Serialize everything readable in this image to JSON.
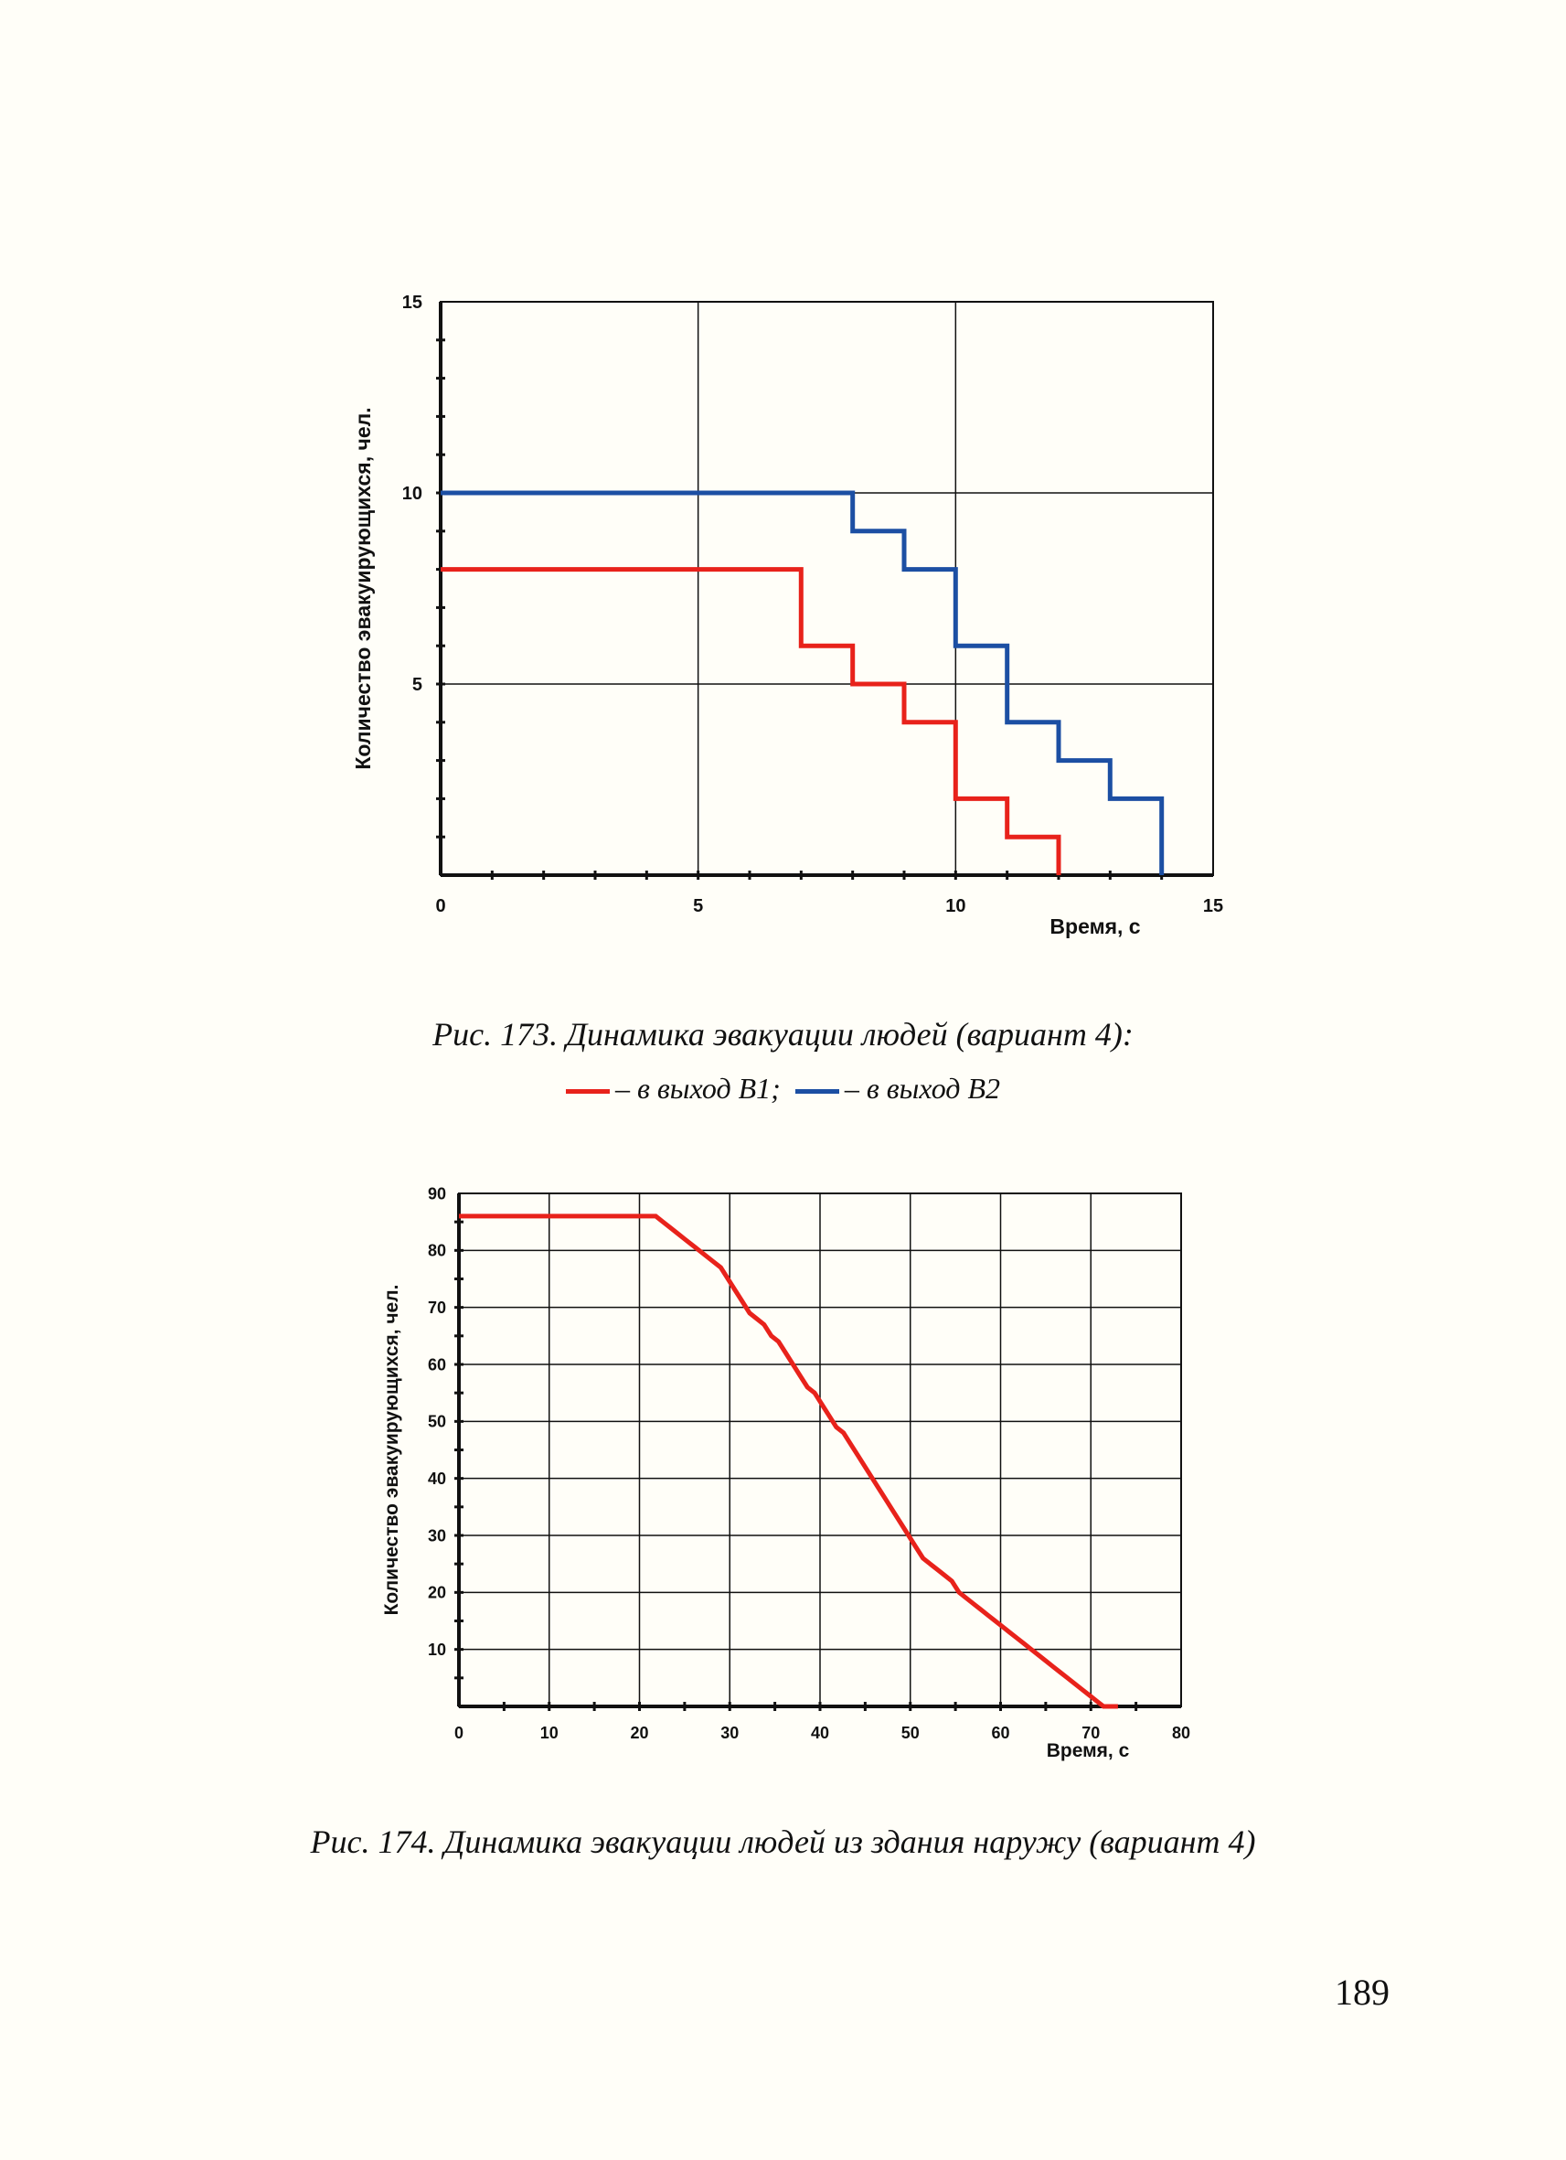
{
  "page_number": "189",
  "figure173": {
    "caption": "Рис. 173. Динамика эвакуации людей (вариант 4):",
    "legend": [
      {
        "label": "– в выход В1;",
        "color": "#e8221b"
      },
      {
        "label": "– в выход В2",
        "color": "#1c4fa3"
      }
    ]
  },
  "figure174": {
    "caption": "Рис. 174. Динамика эвакуации людей из здания наружу (вариант 4)"
  },
  "chart_data": [
    {
      "type": "line",
      "step": true,
      "title": "",
      "xlabel": "Время, с",
      "ylabel": "Количество эвакуирующихся, чел.",
      "xlim": [
        0,
        15
      ],
      "ylim": [
        0,
        15
      ],
      "xticks": [
        0,
        5,
        10,
        15
      ],
      "yticks": [
        5,
        10,
        15
      ],
      "grid": true,
      "series": [
        {
          "name": "в выход В1",
          "color": "#e8221b",
          "x": [
            0,
            7,
            7,
            8,
            8,
            9,
            9,
            10,
            10,
            11,
            11,
            12,
            12
          ],
          "y": [
            8,
            8,
            6,
            6,
            5,
            5,
            4,
            4,
            2,
            2,
            1,
            1,
            0
          ]
        },
        {
          "name": "в выход В2",
          "color": "#1c4fa3",
          "x": [
            0,
            8,
            8,
            9,
            9,
            10,
            10,
            11,
            11,
            12,
            12,
            13,
            13,
            14,
            14
          ],
          "y": [
            10,
            10,
            9,
            9,
            8,
            8,
            6,
            6,
            4,
            4,
            3,
            3,
            2,
            2,
            0
          ]
        }
      ]
    },
    {
      "type": "line",
      "step": true,
      "title": "",
      "xlabel": "Время, с",
      "ylabel": "Количество эвакуирующихся, чел.",
      "xlim": [
        0,
        80
      ],
      "ylim": [
        0,
        90
      ],
      "xticks": [
        0,
        10,
        20,
        30,
        40,
        50,
        60,
        70,
        80
      ],
      "yticks": [
        10,
        20,
        30,
        40,
        50,
        60,
        70,
        80,
        90
      ],
      "grid": true,
      "series": [
        {
          "color": "#e8221b",
          "x": [
            0,
            21.8,
            22.6,
            23.4,
            24.2,
            25.0,
            25.8,
            26.6,
            27.4,
            28.2,
            29.0,
            29.8,
            30.6,
            31.4,
            32.2,
            33.0,
            33.8,
            34.6,
            35.4,
            36.2,
            37.0,
            37.8,
            38.6,
            39.4,
            40.2,
            41.0,
            41.8,
            42.6,
            43.4,
            44.2,
            45.0,
            45.8,
            46.6,
            47.4,
            48.2,
            49.0,
            49.8,
            50.6,
            51.4,
            52.2,
            53.0,
            53.8,
            54.6,
            55.4,
            56.2,
            57.0,
            57.8,
            58.6,
            59.4,
            60.2,
            61.0,
            61.8,
            62.6,
            63.4,
            64.2,
            65.0,
            65.8,
            66.6,
            67.4,
            68.2,
            69.0,
            69.8,
            70.6,
            71.4,
            72.2,
            73.0
          ],
          "y": [
            86,
            86,
            85,
            84,
            83,
            82,
            81,
            80,
            79,
            78,
            77,
            75,
            73,
            71,
            69,
            68,
            67,
            65,
            64,
            62,
            60,
            58,
            56,
            55,
            53,
            51,
            49,
            48,
            46,
            44,
            42,
            40,
            38,
            36,
            34,
            32,
            30,
            28,
            26,
            25,
            24,
            23,
            22,
            20,
            19,
            18,
            17,
            16,
            15,
            14,
            13,
            12,
            11,
            10,
            9,
            8,
            7,
            6,
            5,
            4,
            3,
            2,
            1,
            0,
            0,
            0
          ]
        }
      ]
    }
  ]
}
